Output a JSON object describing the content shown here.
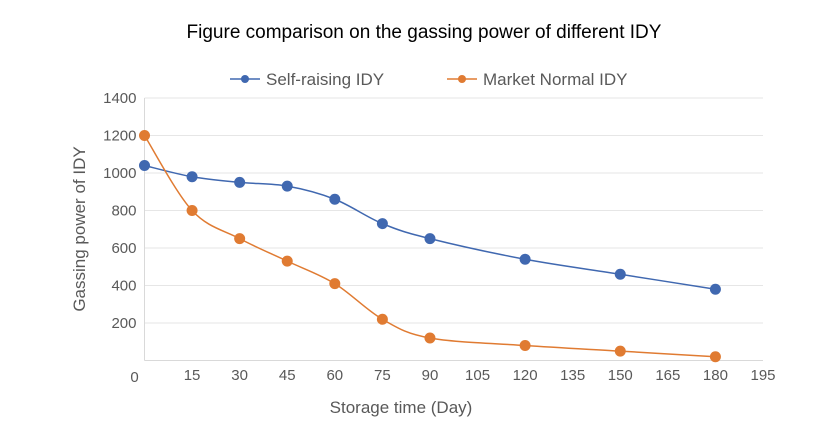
{
  "chart_data": {
    "type": "line",
    "title": "Figure comparison on the gassing power of different IDY",
    "xlabel": "Storage time (Day)",
    "ylabel": "Gassing power of IDY",
    "xlim": [
      0,
      195
    ],
    "ylim": [
      0,
      1400
    ],
    "x_ticks": [
      0,
      15,
      30,
      45,
      60,
      75,
      90,
      105,
      120,
      135,
      150,
      165,
      180,
      195
    ],
    "y_ticks": [
      200,
      400,
      600,
      800,
      1000,
      1200,
      1400
    ],
    "grid": "horizontal",
    "legend_position": "top",
    "smooth": true,
    "x": [
      0,
      15,
      30,
      45,
      60,
      75,
      90,
      120,
      150,
      180
    ],
    "series": [
      {
        "name": "Self-raising IDY",
        "color": "#4068b0",
        "values": [
          1040,
          980,
          950,
          930,
          860,
          730,
          650,
          540,
          460,
          380
        ]
      },
      {
        "name": "Market Normal IDY",
        "color": "#e07b32",
        "values": [
          1200,
          800,
          650,
          530,
          410,
          220,
          120,
          80,
          50,
          20
        ]
      }
    ]
  }
}
